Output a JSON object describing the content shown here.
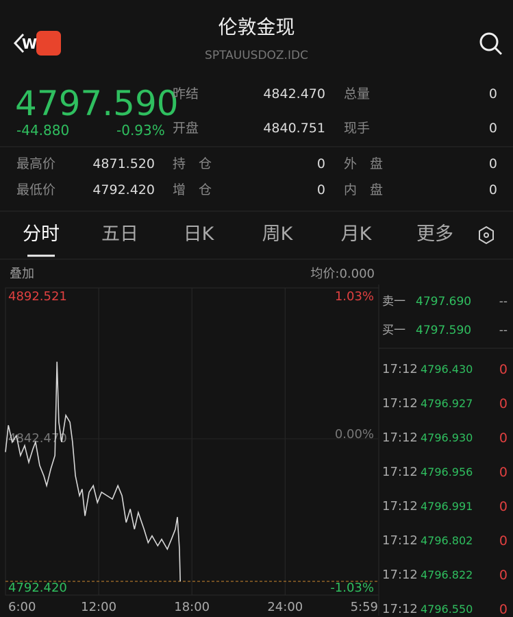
{
  "header": {
    "title": "伦敦金现",
    "subtitle": "SPTAUUSDOZ.IDC",
    "logo": "W"
  },
  "quote": {
    "price": "4797.590",
    "change": "-44.880",
    "change_pct": "-0.93%"
  },
  "stats": [
    {
      "label": "昨结",
      "value": "4842.470"
    },
    {
      "label": "总量",
      "value": "0"
    },
    {
      "label": "开盘",
      "value": "4840.751"
    },
    {
      "label": "现手",
      "value": "0"
    },
    {
      "label": "最高价",
      "value": "4871.520"
    },
    {
      "label": "持　仓",
      "value": "0"
    },
    {
      "label": "外　盘",
      "value": "0"
    },
    {
      "label": "最低价",
      "value": "4792.420"
    },
    {
      "label": "增　仓",
      "value": "0"
    },
    {
      "label": "内　盘",
      "value": "0"
    }
  ],
  "tabs": [
    "分时",
    "五日",
    "日K",
    "周K",
    "月K",
    "更多"
  ],
  "chart_header": {
    "left": "叠加",
    "right": "均价:0.000"
  },
  "chart": {
    "type": "line",
    "color": "#d8d8d8",
    "x": [
      0,
      11,
      26,
      42,
      58,
      74,
      90,
      106,
      116,
      132,
      148,
      159,
      175,
      191,
      199,
      206,
      217,
      233,
      249,
      259,
      270,
      286,
      296,
      307,
      323,
      339,
      355,
      371,
      392,
      413,
      434,
      450,
      466,
      482,
      498,
      513,
      535,
      551,
      566,
      588,
      603,
      625,
      641,
      656,
      664,
      672,
      675
    ],
    "values": [
      4837.8,
      4847.2,
      4841.3,
      4843.6,
      4836.6,
      4840.1,
      4834.2,
      4838.9,
      4841.3,
      4833.1,
      4829.5,
      4826.0,
      4831.9,
      4836.6,
      4869.5,
      4848.3,
      4841.3,
      4850.7,
      4848.3,
      4841.3,
      4829.5,
      4822.5,
      4824.8,
      4815.4,
      4823.7,
      4826.0,
      4820.1,
      4823.7,
      4822.5,
      4821.3,
      4826.0,
      4822.5,
      4813.1,
      4817.8,
      4810.7,
      4816.6,
      4810.7,
      4806.0,
      4808.4,
      4804.9,
      4807.2,
      4803.7,
      4807.2,
      4810.7,
      4815.0,
      4803.7,
      4792.42
    ],
    "xlim": [
      0,
      1439
    ],
    "xticks": [
      {
        "value": 0,
        "label": "6:00"
      },
      {
        "value": 360,
        "label": "12:00"
      },
      {
        "value": 720,
        "label": "18:00"
      },
      {
        "value": 1080,
        "label": "24:00"
      },
      {
        "value": 1439,
        "label": "5:59"
      }
    ],
    "ylim": [
      4792.42,
      4892.521
    ],
    "yticks": [
      4892.521,
      {
        "value": 4842.47,
        "label": "4842.470"
      },
      {
        "value": 4792.42,
        "label": "4792.420"
      }
    ],
    "y2lim": [
      -1.03,
      1.03
    ],
    "y2ticks": [
      {
        "value": 1.03,
        "label": "1.03%"
      },
      {
        "value": 0,
        "label": "0.00%"
      },
      {
        "value": -1.03,
        "label": "-1.03%"
      }
    ]
  },
  "orderbook": [
    {
      "label": "卖一",
      "price": "4797.690",
      "volume": "--"
    },
    {
      "label": "买一",
      "price": "4797.590",
      "volume": "--"
    }
  ],
  "trades": [
    {
      "time": "17:12",
      "price": "4796.430",
      "volume": "0"
    },
    {
      "time": "17:12",
      "price": "4796.927",
      "volume": "0"
    },
    {
      "time": "17:12",
      "price": "4796.930",
      "volume": "0"
    },
    {
      "time": "17:12",
      "price": "4796.956",
      "volume": "0"
    },
    {
      "time": "17:12",
      "price": "4796.991",
      "volume": "0"
    },
    {
      "time": "17:12",
      "price": "4796.802",
      "volume": "0"
    },
    {
      "time": "17:12",
      "price": "4796.822",
      "volume": "0"
    },
    {
      "time": "17:12",
      "price": "4796.550",
      "volume": "0"
    }
  ]
}
